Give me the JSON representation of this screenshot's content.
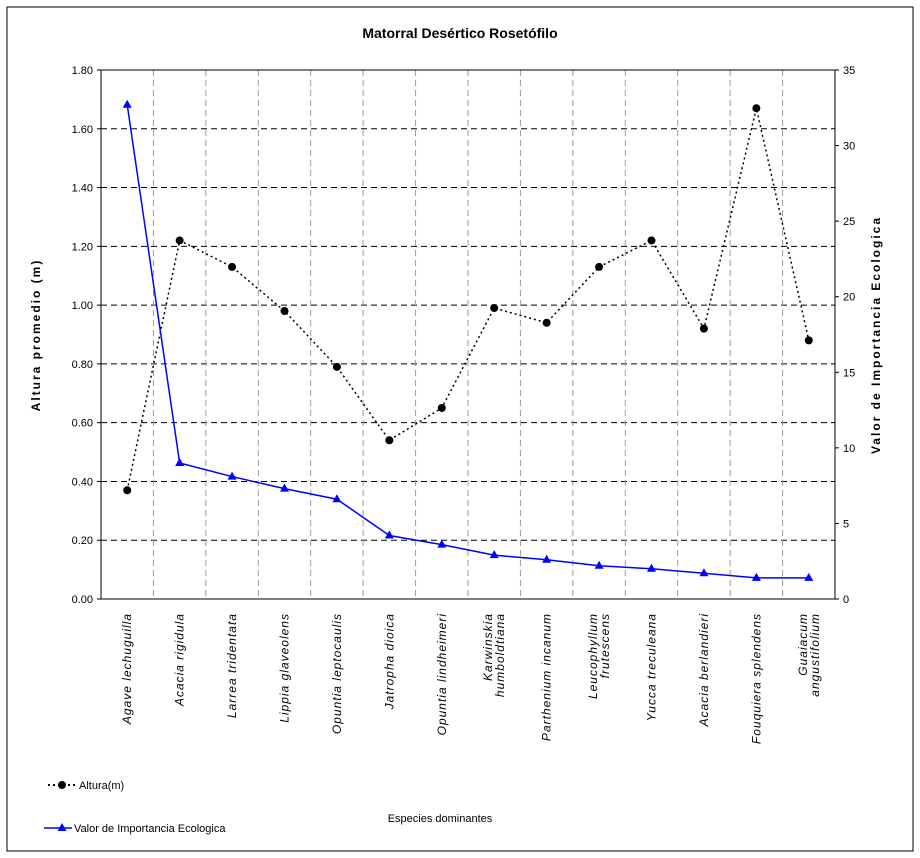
{
  "chart_data": {
    "type": "line",
    "title": "Matorral  Desértico  Rosetófilo",
    "xlabel": "Especies dominantes",
    "ylabel": "Altura promedio (m)",
    "y2label": "Valor de Importancia Ecologica",
    "ylim": [
      0,
      1.8
    ],
    "y2lim": [
      0,
      35
    ],
    "yticks": [
      "0.00",
      "0.20",
      "0.40",
      "0.60",
      "0.80",
      "1.00",
      "1.20",
      "1.40",
      "1.60",
      "1.80"
    ],
    "y2ticks": [
      "0",
      "5",
      "10",
      "15",
      "20",
      "25",
      "30",
      "35"
    ],
    "grid": true,
    "legend_placement": "bottom-left",
    "categories": [
      [
        "Agave lechuguilla"
      ],
      [
        "Acacia rigidula"
      ],
      [
        "Larrea tridentata"
      ],
      [
        "Lippia glaveolens"
      ],
      [
        "Opuntia leptocaulis"
      ],
      [
        "Jatropha dioica"
      ],
      [
        "Opuntia lindheimeri"
      ],
      [
        "Karwinskia",
        "humboldtiana"
      ],
      [
        "Parthenium incanum"
      ],
      [
        "Leucophyllum",
        "frutescens"
      ],
      [
        "Yucca treculeana"
      ],
      [
        "Acacia berlandieri"
      ],
      [
        "Fouquiera splendens"
      ],
      [
        "Guaiacum",
        "angustifolium"
      ]
    ],
    "series": [
      {
        "name": "Altura(m)",
        "axis": "left",
        "color": "#000000",
        "style": "dotted",
        "marker": "circle",
        "values": [
          0.37,
          1.22,
          1.13,
          0.98,
          0.79,
          0.54,
          0.65,
          0.99,
          0.94,
          1.13,
          1.22,
          0.92,
          1.67,
          0.88
        ]
      },
      {
        "name": "Valor de Importancia Ecologica",
        "axis": "right",
        "color": "#0000ff",
        "style": "solid",
        "marker": "triangle",
        "values": [
          32.7,
          9.0,
          8.1,
          7.3,
          6.6,
          4.2,
          3.6,
          2.9,
          2.6,
          2.2,
          2.0,
          1.7,
          1.4,
          1.4
        ]
      }
    ]
  }
}
